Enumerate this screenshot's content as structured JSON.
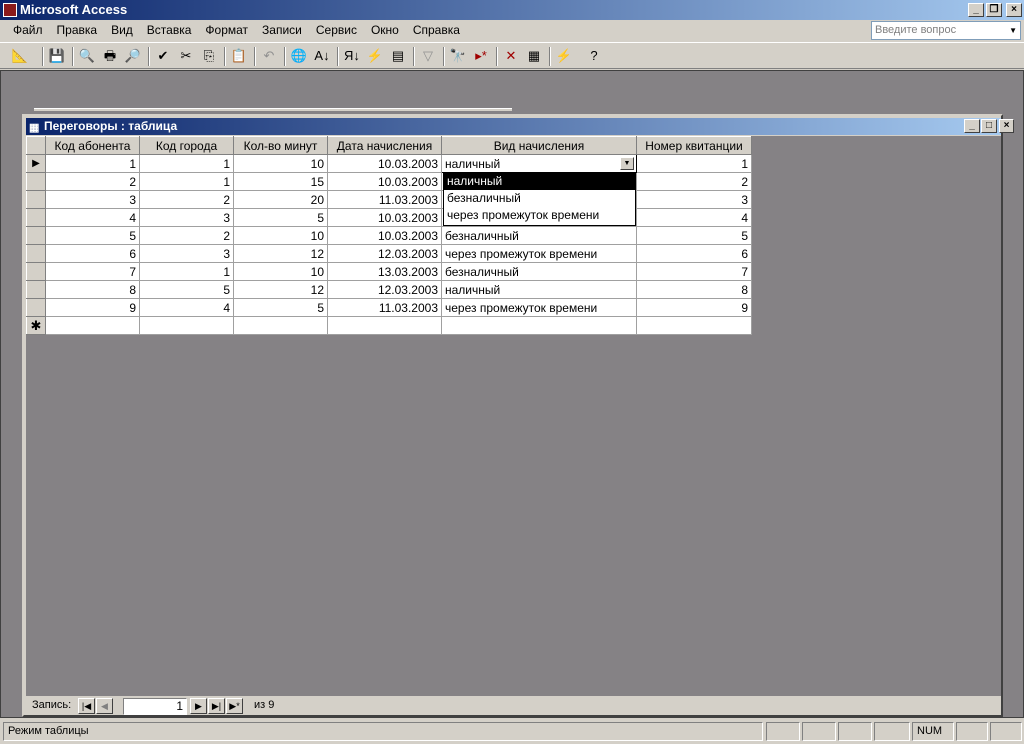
{
  "app": {
    "title": "Microsoft Access",
    "ask_placeholder": "Введите вопрос"
  },
  "menu": [
    "Файл",
    "Правка",
    "Вид",
    "Вставка",
    "Формат",
    "Записи",
    "Сервис",
    "Окно",
    "Справка"
  ],
  "toolbar": [
    "design-view",
    "save",
    "file-search",
    "print",
    "print-preview",
    "spelling",
    "cut",
    "copy",
    "paste",
    "undo",
    "hyperlink",
    "sort-ascending",
    "sort-descending",
    "filter-by-selection",
    "filter-by-form",
    "apply-filter",
    "find",
    "new-record",
    "delete-record",
    "database-window",
    "new-object",
    "help"
  ],
  "table_window": {
    "title": "Переговоры : таблица",
    "columns": [
      "Код абонента",
      "Код города",
      "Кол-во минут",
      "Дата начисления",
      "Вид начисления",
      "Номер квитанции"
    ],
    "rows": [
      [
        "1",
        "1",
        "10",
        "10.03.2003",
        "наличный",
        "1"
      ],
      [
        "2",
        "1",
        "15",
        "10.03.2003",
        "",
        "2"
      ],
      [
        "3",
        "2",
        "20",
        "11.03.2003",
        "",
        "3"
      ],
      [
        "4",
        "3",
        "5",
        "10.03.2003",
        "",
        "4"
      ],
      [
        "5",
        "2",
        "10",
        "10.03.2003",
        "безналичный",
        "5"
      ],
      [
        "6",
        "3",
        "12",
        "12.03.2003",
        "через промежуток времени",
        "6"
      ],
      [
        "7",
        "1",
        "10",
        "13.03.2003",
        "безналичный",
        "7"
      ],
      [
        "8",
        "5",
        "12",
        "12.03.2003",
        "наличный",
        "8"
      ],
      [
        "9",
        "4",
        "5",
        "11.03.2003",
        "через промежуток времени",
        "9"
      ]
    ],
    "dropdown_options": [
      "наличный",
      "безналичный",
      "через промежуток времени"
    ],
    "dropdown_selected": "наличный"
  },
  "nav": {
    "label": "Запись:",
    "current": "1",
    "of": "из 9"
  },
  "status": {
    "mode": "Режим таблицы",
    "num": "NUM"
  }
}
